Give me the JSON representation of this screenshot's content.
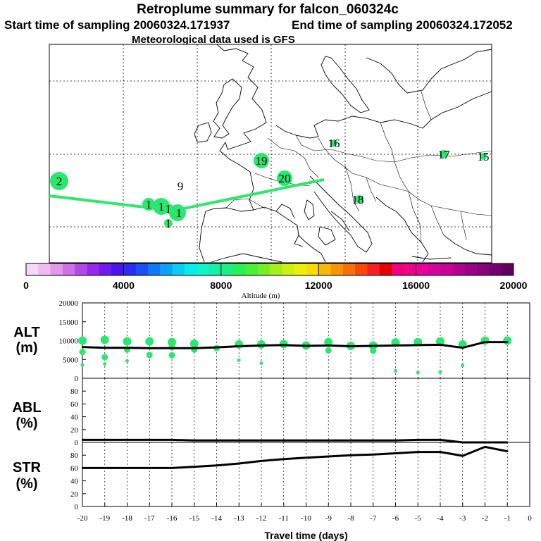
{
  "title": {
    "line1": "Retroplume summary for falcon_060324c",
    "line2_start": "Start time of sampling 20060324.171937",
    "line2_end": "End time of sampling 20060324.172052",
    "line3": "Meteorological data used is GFS"
  },
  "colorbar": {
    "label": "Altitude (m)",
    "ticks": [
      "0",
      "4000",
      "8000",
      "12000",
      "16000",
      "20000"
    ],
    "colors": [
      "#f5d8f5",
      "#eebcf0",
      "#e298ea",
      "#d070e6",
      "#b348e8",
      "#9528ea",
      "#7018ee",
      "#4a14f2",
      "#2a2cf4",
      "#1a50f4",
      "#0f78f4",
      "#0aa4f4",
      "#08ccf4",
      "#08ecf0",
      "#10f4cc",
      "#14f0a8",
      "#1cf082",
      "#28f058",
      "#48f036",
      "#74f024",
      "#a4f018",
      "#ccf010",
      "#ecf008",
      "#f8dc08",
      "#f8b808",
      "#f89408",
      "#f87008",
      "#f84808",
      "#f82020",
      "#e80000",
      "#f0007c",
      "#f0008c",
      "#e80098",
      "#d800a0",
      "#c80098",
      "#b40090",
      "#9c0088",
      "#88007c",
      "#720070",
      "#600060"
    ]
  },
  "map": {
    "plume_color": "#2ee86a",
    "clusters": [
      {
        "label": "2",
        "color": "#28e870"
      },
      {
        "label": "9",
        "color": "#28e870"
      },
      {
        "label": "19",
        "color": "#28e870"
      },
      {
        "label": "20",
        "color": "#28e870"
      },
      {
        "label": "16",
        "color": "#28e870"
      },
      {
        "label": "17",
        "color": "#28e870"
      },
      {
        "label": "15",
        "color": "#28e870"
      },
      {
        "label": "18",
        "color": "#28e870"
      },
      {
        "label": "1",
        "color": "#28e870"
      },
      {
        "label": "1",
        "color": "#28e870"
      },
      {
        "label": "1",
        "color": "#28e870"
      },
      {
        "label": "1",
        "color": "#28e870"
      },
      {
        "label": "1",
        "color": "#28e870"
      }
    ]
  },
  "chart_data": [
    {
      "type": "line",
      "panel": "ALT",
      "ylabel_line1": "ALT",
      "ylabel_line2": "(m)",
      "ylim": [
        0,
        20000
      ],
      "yticks": [
        "0",
        "5000",
        "10000",
        "15000",
        "20000"
      ],
      "xlim": [
        -20,
        0
      ],
      "x": [
        -20,
        -19,
        -18,
        -17,
        -16,
        -15,
        -14,
        -13,
        -12,
        -11,
        -10,
        -9,
        -8,
        -7,
        -6,
        -5,
        -4,
        -3,
        -2,
        -1
      ],
      "values": [
        8300,
        8100,
        8100,
        8000,
        8000,
        8000,
        8200,
        8500,
        8700,
        8800,
        8600,
        8700,
        8500,
        8600,
        8700,
        8800,
        8900,
        8100,
        9600,
        9600
      ],
      "cluster_altitudes": [
        {
          "x": -20,
          "alt": 10000
        },
        {
          "x": -20,
          "alt": 7000
        },
        {
          "x": -20,
          "alt": 3500
        },
        {
          "x": -19,
          "alt": 10200
        },
        {
          "x": -19,
          "alt": 5600
        },
        {
          "x": -19,
          "alt": 3800
        },
        {
          "x": -18,
          "alt": 9800
        },
        {
          "x": -18,
          "alt": 7600
        },
        {
          "x": -18,
          "alt": 4600
        },
        {
          "x": -17,
          "alt": 9800
        },
        {
          "x": -17,
          "alt": 6200
        },
        {
          "x": -16,
          "alt": 9600
        },
        {
          "x": -16,
          "alt": 8200
        },
        {
          "x": -16,
          "alt": 6100
        },
        {
          "x": -15,
          "alt": 9200
        },
        {
          "x": -15,
          "alt": 7600
        },
        {
          "x": -14,
          "alt": 8000
        },
        {
          "x": -13,
          "alt": 9000
        },
        {
          "x": -13,
          "alt": 4800
        },
        {
          "x": -12,
          "alt": 9000
        },
        {
          "x": -12,
          "alt": 4000
        },
        {
          "x": -11,
          "alt": 9100
        },
        {
          "x": -10,
          "alt": 8700
        },
        {
          "x": -9,
          "alt": 9600
        },
        {
          "x": -9,
          "alt": 7400
        },
        {
          "x": -8,
          "alt": 8600
        },
        {
          "x": -7,
          "alt": 8700
        },
        {
          "x": -7,
          "alt": 7300
        },
        {
          "x": -6,
          "alt": 9500
        },
        {
          "x": -6,
          "alt": 2000
        },
        {
          "x": -5,
          "alt": 9600
        },
        {
          "x": -5,
          "alt": 1500
        },
        {
          "x": -4,
          "alt": 9800
        },
        {
          "x": -4,
          "alt": 1600
        },
        {
          "x": -3,
          "alt": 9000
        },
        {
          "x": -3,
          "alt": 3400
        },
        {
          "x": -2,
          "alt": 10000
        },
        {
          "x": -1,
          "alt": 10000
        }
      ]
    },
    {
      "type": "line",
      "panel": "ABL",
      "ylabel_line1": "ABL",
      "ylabel_line2": "(%)",
      "ylim": [
        0,
        100
      ],
      "yticks": [
        "0",
        "20",
        "40",
        "60",
        "80"
      ],
      "xlim": [
        -20,
        0
      ],
      "x": [
        -20,
        -19,
        -18,
        -17,
        -16,
        -15,
        -14,
        -13,
        -12,
        -11,
        -10,
        -9,
        -8,
        -7,
        -6,
        -5,
        -4,
        -3,
        -2,
        -1
      ],
      "values": [
        4,
        4,
        4,
        4,
        4,
        3,
        3,
        3,
        3,
        3,
        3,
        3,
        3,
        3,
        3,
        4,
        4,
        0,
        0,
        0
      ]
    },
    {
      "type": "line",
      "panel": "STR",
      "ylabel_line1": "STR",
      "ylabel_line2": "(%)",
      "ylim": [
        0,
        100
      ],
      "yticks": [
        "0",
        "20",
        "40",
        "60",
        "80"
      ],
      "xlim": [
        -20,
        0
      ],
      "x": [
        -20,
        -19,
        -18,
        -17,
        -16,
        -15,
        -14,
        -13,
        -12,
        -11,
        -10,
        -9,
        -8,
        -7,
        -6,
        -5,
        -4,
        -3,
        -2,
        -1
      ],
      "values": [
        60,
        60,
        60,
        60,
        60,
        62,
        64,
        67,
        71,
        74,
        76,
        78,
        80,
        81,
        83,
        85,
        85,
        79,
        93,
        86
      ],
      "xticks": [
        "-20",
        "-19",
        "-18",
        "-17",
        "-16",
        "-15",
        "-14",
        "-13",
        "-12",
        "-11",
        "-10",
        "-9",
        "-8",
        "-7",
        "-6",
        "-5",
        "-4",
        "-3",
        "-2",
        "-1",
        "0"
      ],
      "xlabel": "Travel time (days)"
    }
  ]
}
